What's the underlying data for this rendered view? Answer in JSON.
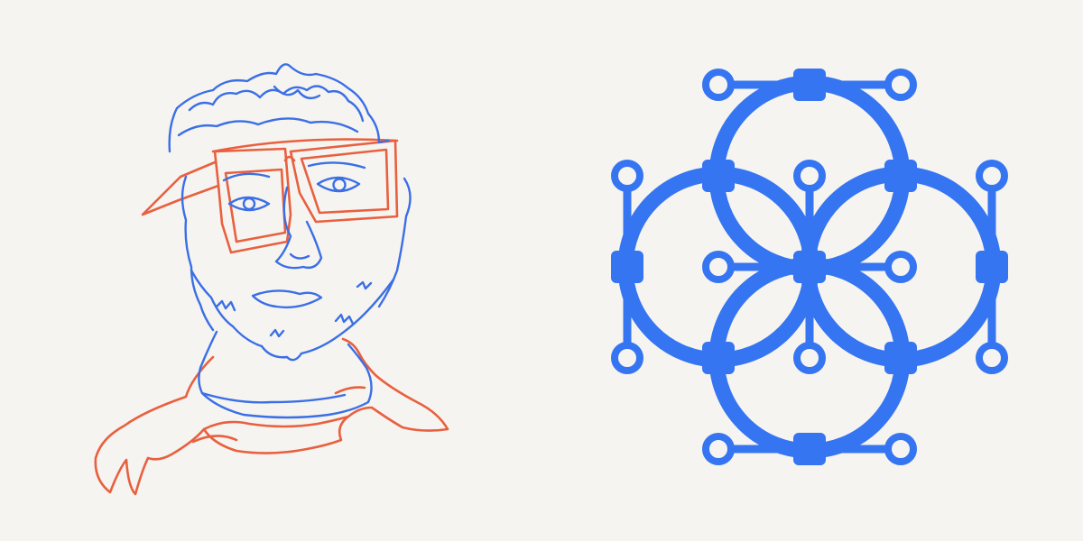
{
  "canvas": {
    "background": "#f6f4f0"
  },
  "portrait": {
    "icon": "line-portrait-illustration",
    "colors": {
      "blue": "#3a6fe6",
      "red": "#e8603f"
    }
  },
  "bezier_logo": {
    "icon": "bezier-curve-circles-icon",
    "color": "#3575f2",
    "background": "#f6f4f0",
    "circle_count": 4,
    "anchor_count": 9,
    "handle_count": 12
  }
}
